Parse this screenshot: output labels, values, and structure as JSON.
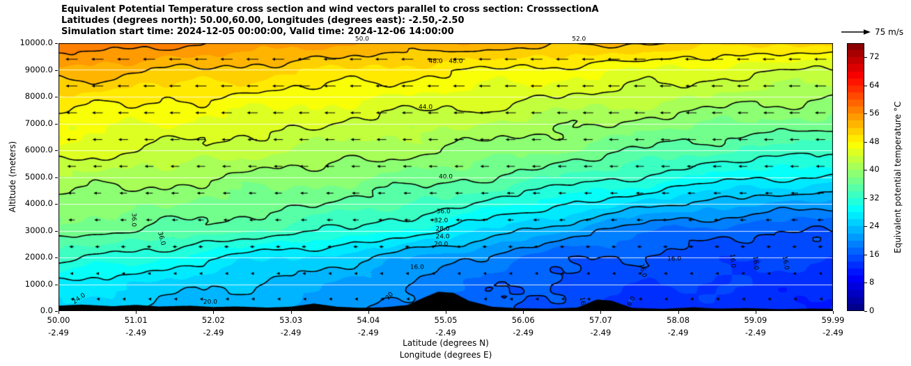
{
  "title": {
    "line1": "Equivalent Potential Temperature cross section and wind vectors parallel to cross section: CrosssectionA",
    "line2": "Latitudes (degrees north): 50.00,60.00, Longitudes (degrees east): -2.50,-2.50",
    "line3": "Simulation start time: 2024-12-05 00:00:00, Valid time: 2024-12-06 14:00:00"
  },
  "axes": {
    "ylabel": "Altitude (meters)",
    "xlabel_line1": "Latitude (degrees N)",
    "xlabel_line2": "Longitude (degrees E)",
    "yticks": [
      "0.0",
      "1000.0",
      "2000.0",
      "3000.0",
      "4000.0",
      "5000.0",
      "6000.0",
      "7000.0",
      "8000.0",
      "9000.0",
      "10000.0"
    ],
    "xticks_lat": [
      "50.00",
      "51.01",
      "52.02",
      "53.03",
      "54.04",
      "55.05",
      "56.06",
      "57.07",
      "58.08",
      "59.09",
      "59.99"
    ],
    "xticks_lon": [
      "-2.49",
      "-2.49",
      "-2.49",
      "-2.49",
      "-2.49",
      "-2.49",
      "-2.49",
      "-2.49",
      "-2.49",
      "-2.49",
      "-2.49"
    ]
  },
  "colorbar": {
    "label": "Equivalent potential temperature °C",
    "ticks": [
      0,
      8,
      16,
      24,
      32,
      40,
      48,
      56,
      64,
      72
    ],
    "vmin": 0,
    "vmax": 76
  },
  "quiver_key": {
    "label": "75 m/s",
    "value_ms": 75
  },
  "chart_data": {
    "type": "heatmap",
    "x_axis": "latitude_degrees_north",
    "y_axis": "altitude_meters",
    "latitudes": [
      50,
      51,
      52,
      53,
      54,
      55,
      56,
      57,
      58,
      59,
      60
    ],
    "altitudes": [
      0,
      1000,
      2000,
      3000,
      4000,
      5000,
      6000,
      7000,
      8000,
      9000,
      10000
    ],
    "theta_e_grid": [
      [
        25,
        24,
        22.5,
        22,
        20,
        18,
        16,
        14,
        13,
        12.5,
        12
      ],
      [
        27,
        26,
        24.5,
        23,
        21,
        18.5,
        16,
        15,
        14,
        13.5,
        13
      ],
      [
        33,
        31,
        28,
        26,
        24,
        21,
        17.5,
        16,
        15,
        14.5,
        14
      ],
      [
        37,
        36,
        35,
        33,
        31,
        28,
        24,
        20,
        17,
        16.5,
        16
      ],
      [
        39,
        38.5,
        37.5,
        36.5,
        35,
        33,
        30,
        27,
        24,
        22,
        21
      ],
      [
        42,
        41,
        40,
        39,
        38,
        37,
        35,
        33,
        30.5,
        28.5,
        27.5
      ],
      [
        45,
        44,
        43,
        42,
        41,
        40,
        38.5,
        37,
        35,
        33.5,
        33
      ],
      [
        47,
        46,
        45.5,
        44.5,
        43.5,
        42.5,
        41.5,
        40,
        38.5,
        37.5,
        37
      ],
      [
        50,
        48.5,
        48,
        47,
        46,
        45.5,
        44.5,
        43.5,
        42.5,
        41,
        40
      ],
      [
        53,
        52.5,
        51.5,
        50.5,
        49.5,
        48.5,
        47.5,
        46.5,
        45.5,
        44.5,
        44
      ],
      [
        58,
        57,
        56,
        55,
        54,
        53.5,
        53,
        52.5,
        51.5,
        50.5,
        50
      ]
    ],
    "fill_step": 2,
    "contour_levels": [
      16,
      20,
      24,
      28,
      32,
      36,
      40,
      44,
      48,
      52,
      56
    ],
    "contour_labels": [
      {
        "text": "50.0",
        "fx": 0.392,
        "fy": -0.012,
        "rot": 0
      },
      {
        "text": "52.0",
        "fx": 0.672,
        "fy": -0.012,
        "rot": 0
      },
      {
        "text": "48.0",
        "fx": 0.487,
        "fy": 0.07,
        "rot": 0
      },
      {
        "text": "48.0",
        "fx": 0.513,
        "fy": 0.07,
        "rot": 0
      },
      {
        "text": "44.0",
        "fx": 0.474,
        "fy": 0.242,
        "rot": 0
      },
      {
        "text": "40.0",
        "fx": 0.5,
        "fy": 0.5,
        "rot": 0
      },
      {
        "text": "36.0",
        "fx": 0.497,
        "fy": 0.632,
        "rot": 0
      },
      {
        "text": "32.0",
        "fx": 0.494,
        "fy": 0.664,
        "rot": 0
      },
      {
        "text": "28.0",
        "fx": 0.496,
        "fy": 0.696,
        "rot": 0
      },
      {
        "text": "24.0",
        "fx": 0.496,
        "fy": 0.724,
        "rot": 0
      },
      {
        "text": "20.0",
        "fx": 0.494,
        "fy": 0.752,
        "rot": 0
      },
      {
        "text": "16.0",
        "fx": 0.463,
        "fy": 0.838,
        "rot": 0
      },
      {
        "text": "36.0",
        "fx": 0.096,
        "fy": 0.66,
        "rot": 90
      },
      {
        "text": "36.0",
        "fx": 0.132,
        "fy": 0.73,
        "rot": 75
      },
      {
        "text": "24.0",
        "fx": 0.027,
        "fy": 0.955,
        "rot": -35
      },
      {
        "text": "20.0",
        "fx": 0.196,
        "fy": 0.968,
        "rot": 0
      },
      {
        "text": "20",
        "fx": 0.428,
        "fy": 0.945,
        "rot": -50
      },
      {
        "text": "16.0",
        "fx": 0.676,
        "fy": 0.975,
        "rot": 80
      },
      {
        "text": "16.0",
        "fx": 0.754,
        "fy": 0.85,
        "rot": 75
      },
      {
        "text": "16.0",
        "fx": 0.795,
        "fy": 0.808,
        "rot": 0
      },
      {
        "text": "16.0",
        "fx": 0.87,
        "fy": 0.812,
        "rot": 85
      },
      {
        "text": "16.0",
        "fx": 0.899,
        "fy": 0.82,
        "rot": 85
      },
      {
        "text": "16.0",
        "fx": 0.938,
        "fy": 0.82,
        "rot": 80
      },
      {
        "text": "16.0",
        "fx": 0.739,
        "fy": 0.972,
        "rot": -60
      }
    ],
    "terrain_profile": [
      [
        50,
        200
      ],
      [
        50.3,
        240
      ],
      [
        50.7,
        180
      ],
      [
        51,
        230
      ],
      [
        51.3,
        170
      ],
      [
        51.7,
        200
      ],
      [
        52,
        150
      ],
      [
        52.3,
        170
      ],
      [
        52.7,
        130
      ],
      [
        53,
        160
      ],
      [
        53.3,
        280
      ],
      [
        53.6,
        160
      ],
      [
        53.9,
        120
      ],
      [
        54.2,
        140
      ],
      [
        54.5,
        220
      ],
      [
        54.7,
        480
      ],
      [
        54.9,
        720
      ],
      [
        55.1,
        680
      ],
      [
        55.3,
        380
      ],
      [
        55.6,
        160
      ],
      [
        55.9,
        110
      ],
      [
        56.3,
        90
      ],
      [
        56.7,
        130
      ],
      [
        56.95,
        430
      ],
      [
        57.15,
        380
      ],
      [
        57.4,
        120
      ],
      [
        57.8,
        80
      ],
      [
        58.2,
        140
      ],
      [
        58.5,
        90
      ],
      [
        58.9,
        110
      ],
      [
        59.3,
        70
      ],
      [
        59.7,
        90
      ],
      [
        60,
        80
      ]
    ],
    "wind": {
      "reference_speed_ms": 75,
      "direction": "toward_lower_latitude",
      "row_altitudes": [
        9400,
        8400,
        7400,
        6400,
        5400,
        4400,
        3400,
        2400,
        1400,
        450
      ],
      "row_speeds_ms": [
        38,
        36,
        33,
        30,
        27,
        23,
        19,
        14,
        9,
        5
      ],
      "columns": 30
    },
    "colors": {
      "colormap": "jet",
      "contour_line": "#000000",
      "terrain": "#000000",
      "gridline": "#ffffff",
      "background": "#ffffff"
    }
  }
}
